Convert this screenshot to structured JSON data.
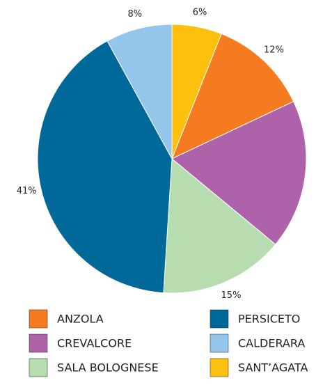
{
  "chart_data": {
    "type": "pie",
    "categories": [
      "ANZOLA",
      "CREVALCORE",
      "SALA BOLOGNESE",
      "PERSICETO",
      "CALDERARA",
      "SANT’AGATA"
    ],
    "values": [
      12,
      18,
      15,
      41,
      8,
      6
    ],
    "value_labels": [
      "12%",
      null,
      "15%",
      "41%",
      "8%",
      "6%"
    ],
    "colors": [
      "#f47b20",
      "#ad62aa",
      "#b6dcb0",
      "#00699a",
      "#93c6ea",
      "#fec00f"
    ]
  }
}
